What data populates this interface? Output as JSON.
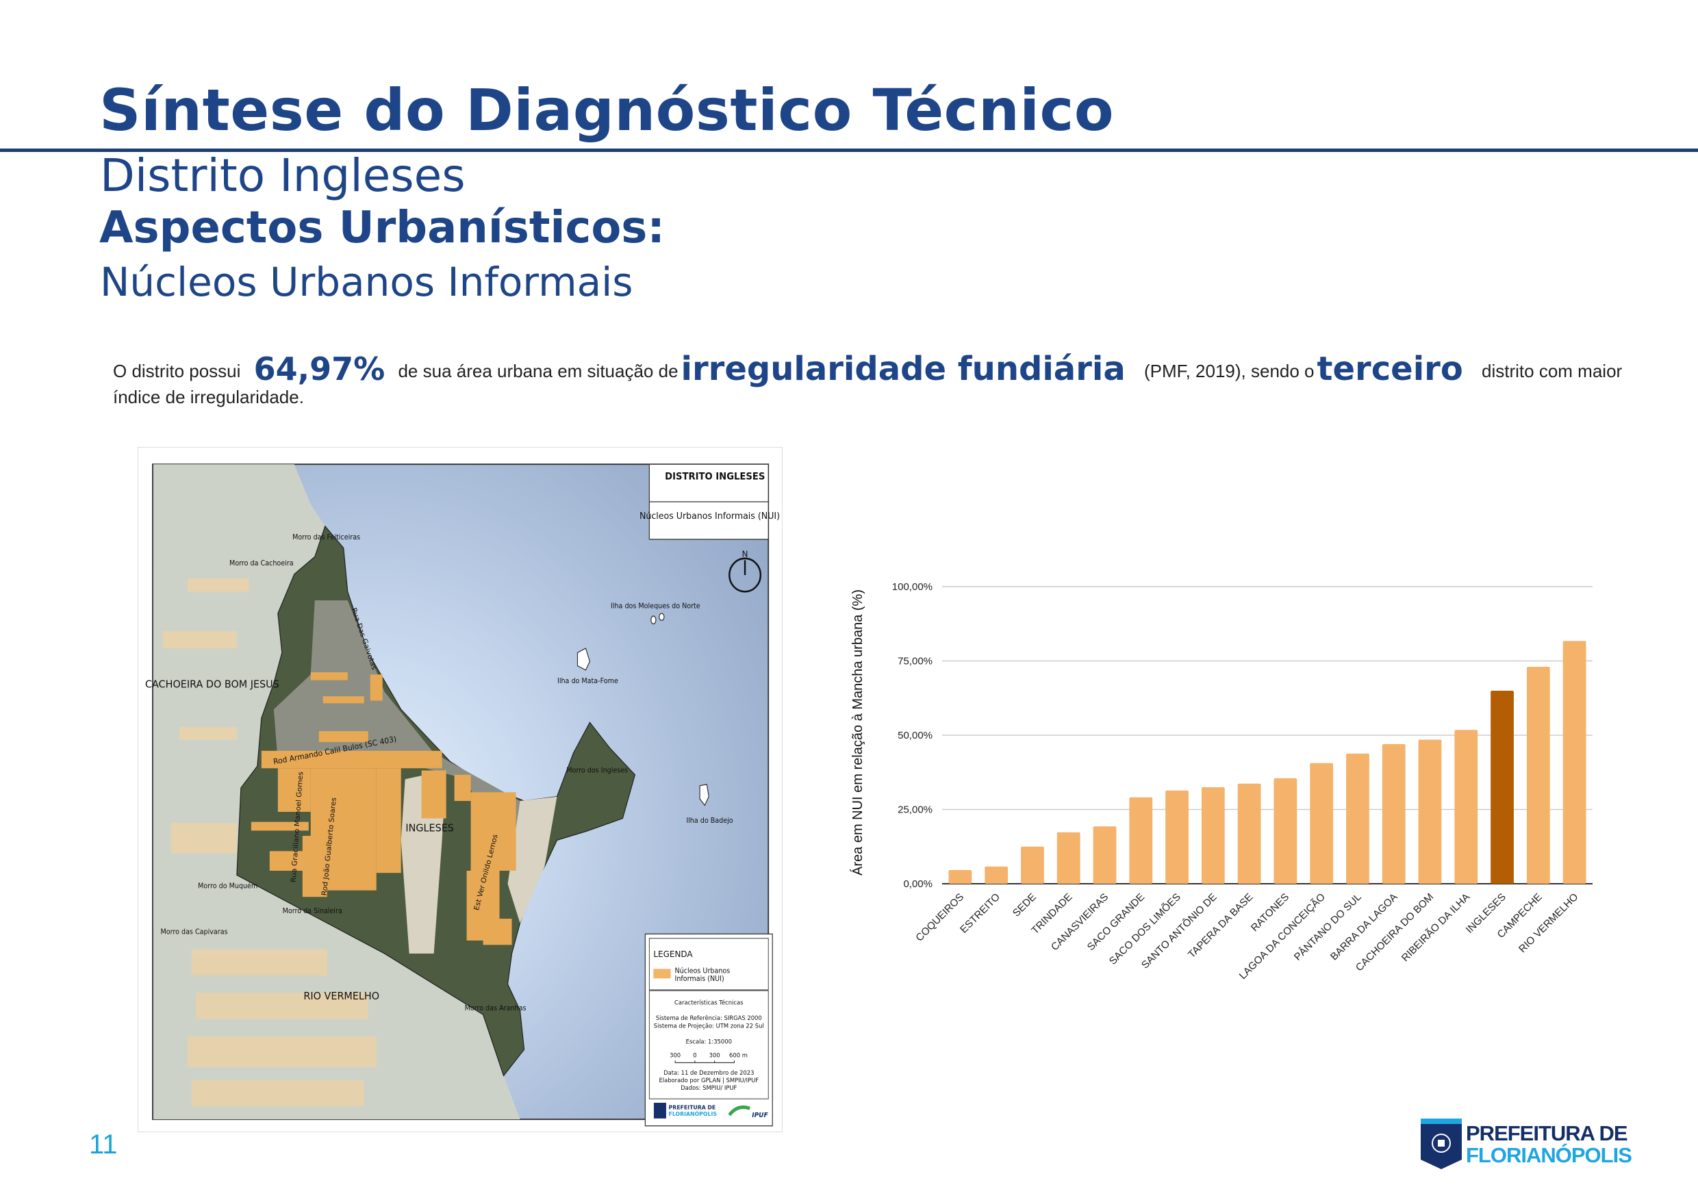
{
  "header": {
    "title": "Síntese do Diagnóstico Técnico",
    "subtitle": "Distrito Ingleses",
    "section": "Aspectos Urbanísticos:",
    "subsection": "Núcleos Urbanos Informais"
  },
  "paragraph": {
    "p1": "O distrito possui",
    "value": "64,97%",
    "p2": "de sua área urbana em situação de",
    "highlight": "irregularidade fundiária",
    "p3": "(PMF, 2019), sendo o",
    "rank": "terceiro",
    "p4": "distrito com maior índice de irregularidade."
  },
  "map": {
    "title": "DISTRITO INGLESES",
    "subtitle": "Núcleos Urbanos Informais (NUI)",
    "north": "N",
    "labels": {
      "cachoeira": "CACHOEIRA DO BOM JESUS",
      "ingleses": "INGLESES",
      "rio_vermelho": "RIO VERMELHO",
      "morro_feiticeiras": "Morro das Feiticeiras",
      "morro_cachoeira": "Morro da Cachoeira",
      "morro_muquem": "Morro do Muquém",
      "morro_sinaleira": "Morro da Sinaleira",
      "morro_capivaras": "Morro das Capivaras",
      "morro_aranhas": "Morro das Aranhas",
      "morro_ingleses": "Morro dos Ingleses",
      "ilha_moleques": "Ilha dos Moleques do Norte",
      "ilha_matafome": "Ilha do Mata-Fome",
      "ilha_badejo": "Ilha do Badejo",
      "rua_gaivotas": "Rua Das Gaivotas",
      "rod_armando": "Rod Armando Calil Bulos (SC 403)",
      "rua_graciliano": "Rua Graciliano Manoel Gomes",
      "rod_joao": "Rod João Gualberto Soares",
      "est_ver": "Est Ver Onildo Lemos"
    },
    "legend": {
      "title": "LEGENDA",
      "item_line1": "Núcleos Urbanos",
      "item_line2": "Informais (NUI)",
      "item_color": "#f0b567",
      "tech_title": "Características Técnicas",
      "ref": "Sistema de Referência: SIRGAS 2000",
      "proj": "Sistema de Projeção: UTM zona 22 Sul",
      "scale": "Escala: 1:35000",
      "scale_ticks": [
        "300",
        "0",
        "300",
        "600 m"
      ],
      "date": "Data: 11 de Dezembro de 2023",
      "author": "Elaborado por GPLAN | SMPIU/IPUF",
      "source": "Dados: SMPIU/ IPUF",
      "logo1_line1": "PREFEITURA DE",
      "logo1_line2": "FLORIANÓPOLIS",
      "logo2": "IPUF"
    }
  },
  "chart_data": {
    "type": "bar",
    "title": "",
    "xlabel": "",
    "ylabel": "Área em NUI em relação à Mancha urbana (%)",
    "ylim": [
      0,
      100
    ],
    "yticks": [
      "0,00%",
      "25,00%",
      "50,00%",
      "75,00%",
      "100,00%"
    ],
    "ytick_values": [
      0,
      25,
      50,
      75,
      100
    ],
    "grid": true,
    "categories": [
      "COQUEIROS",
      "ESTREITO",
      "SEDE",
      "TRINDADE",
      "CANASVIEIRAS",
      "SACO GRANDE",
      "SACO DOS LIMÕES",
      "SANTO ANTÔNIO DE",
      "TAPERA DA BASE",
      "RATONES",
      "LAGOA DA CONCEIÇÃO",
      "PÂNTANO DO SUL",
      "BARRA DA LAGOA",
      "CACHOEIRA DO BOM",
      "RIBEIRÃO DA ILHA",
      "INGLESES",
      "CAMPECHE",
      "RIO VERMELHO"
    ],
    "values": [
      4.6,
      5.8,
      12.5,
      17.3,
      19.3,
      29.1,
      31.4,
      32.5,
      33.7,
      35.5,
      40.6,
      43.8,
      47.0,
      48.5,
      51.8,
      64.97,
      73.0,
      81.7
    ],
    "bar_color": "#f4b26b",
    "highlight_category": "INGLESES",
    "highlight_color": "#b35e05"
  },
  "footer": {
    "page_number": "11",
    "logo_line1": "PREFEITURA DE",
    "logo_line2": "FLORIANÓPOLIS"
  }
}
